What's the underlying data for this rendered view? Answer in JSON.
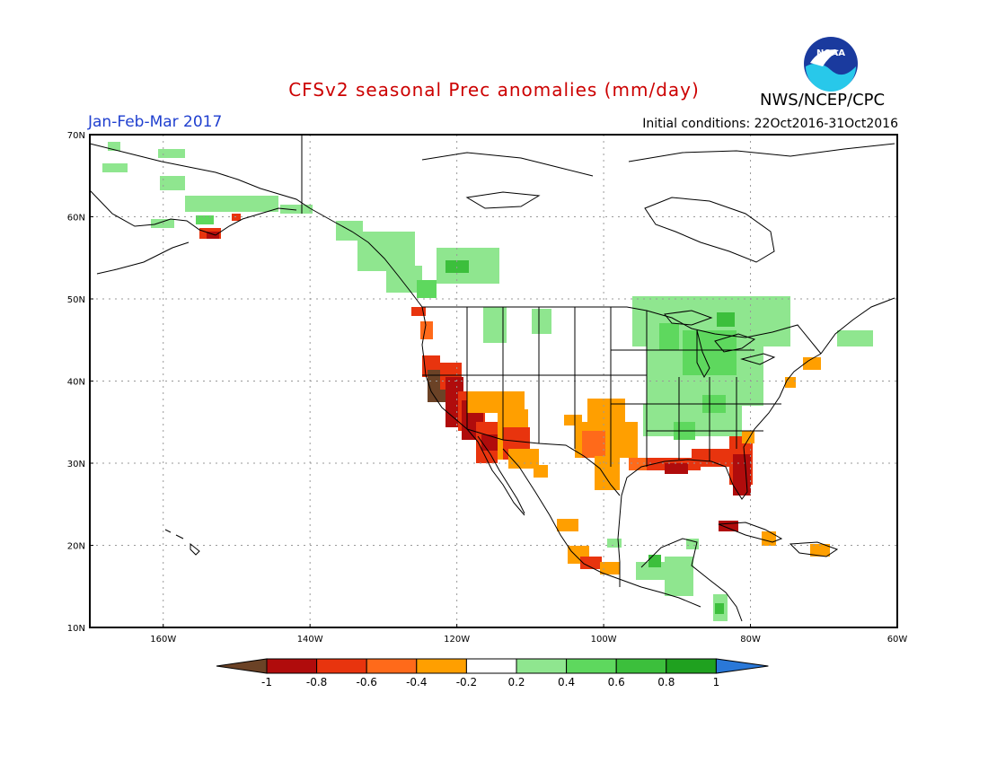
{
  "header": {
    "title": "CFSv2 seasonal Prec anomalies (mm/day)",
    "period": "Jan-Feb-Mar 2017",
    "initial_conditions": "Initial conditions: 22Oct2016-31Oct2016",
    "agency": "NWS/NCEP/CPC",
    "logo_text": "NOAA"
  },
  "colors": {
    "title": "#cc0000",
    "period": "#1f3fcf",
    "c_m10": "#6b4226",
    "c_m08": "#b00c0c",
    "c_m06": "#e8340e",
    "c_m04": "#ff6a1a",
    "c_m02": "#ff9f00",
    "c_p02": "#8fe68f",
    "c_p04": "#5ed85e",
    "c_p06": "#3cbf3c",
    "c_p08": "#1fa11f",
    "c_p10": "#2a78d8"
  },
  "map": {
    "lat_labels": [
      "70N",
      "60N",
      "50N",
      "40N",
      "30N",
      "20N",
      "10N"
    ],
    "lon_labels": [
      "160W",
      "140W",
      "120W",
      "100W",
      "80W",
      "60W"
    ]
  },
  "colorbar": {
    "labels": [
      "-1",
      "-0.8",
      "-0.6",
      "-0.4",
      "-0.2",
      "0.2",
      "0.4",
      "0.6",
      "0.8",
      "1"
    ]
  }
}
